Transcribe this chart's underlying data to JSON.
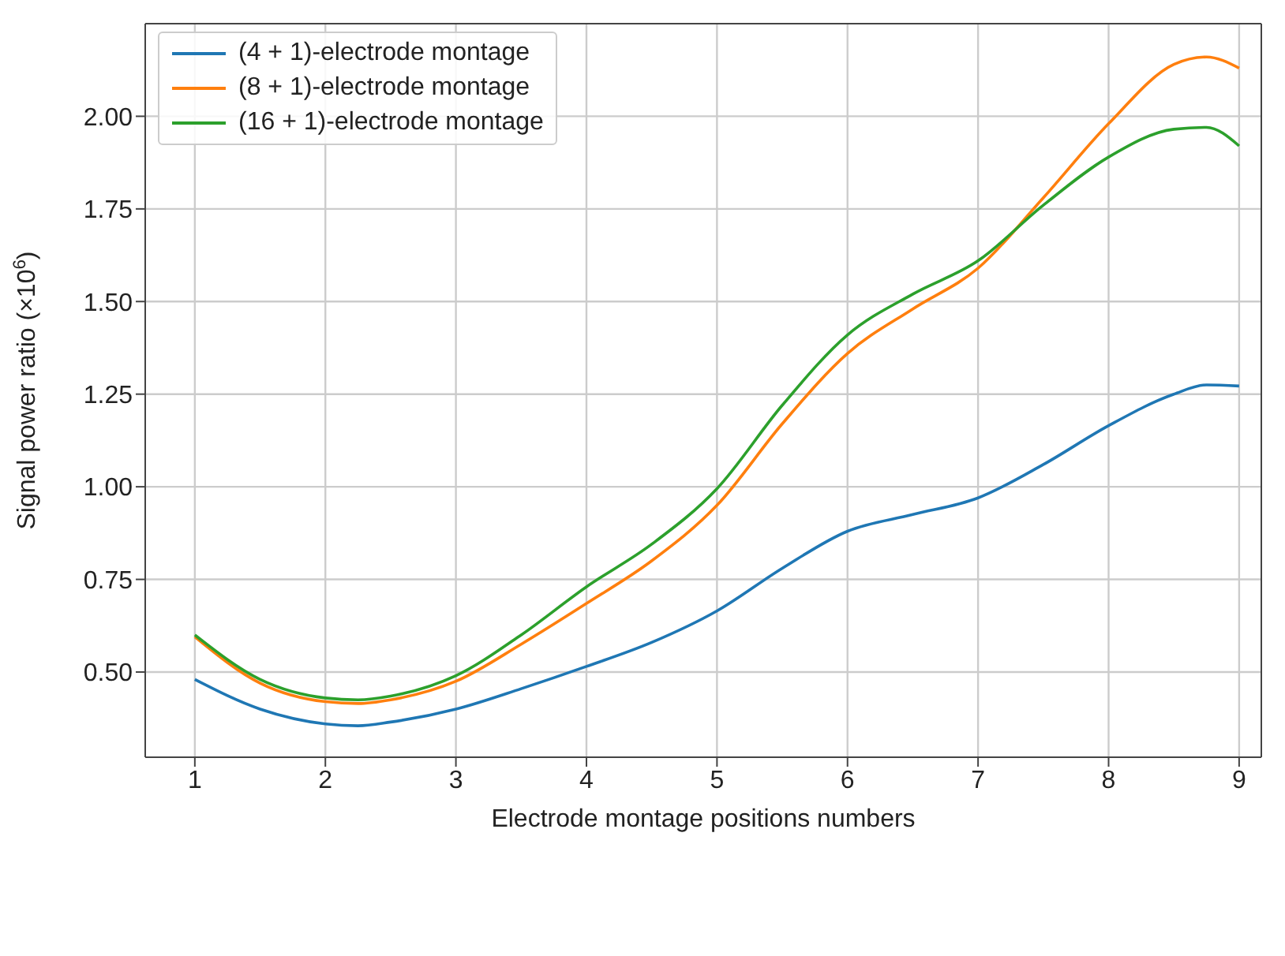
{
  "chart_data": {
    "type": "line",
    "xlabel": "Electrode montage positions numbers",
    "ylabel": "Signal power ratio (×10$^{6}$)",
    "x": [
      1,
      1.5,
      2,
      2.25,
      2.5,
      3,
      3.5,
      4,
      4.5,
      5,
      5.5,
      6,
      6.5,
      7,
      7.5,
      8,
      8.5,
      8.75,
      9
    ],
    "series": [
      {
        "name": "(4 + 1)-electrode montage",
        "color": "#1f77b4",
        "values": [
          0.48,
          0.4,
          0.36,
          0.355,
          0.365,
          0.4,
          0.455,
          0.515,
          0.58,
          0.665,
          0.78,
          0.88,
          0.925,
          0.97,
          1.06,
          1.165,
          1.25,
          1.275,
          1.272
        ]
      },
      {
        "name": "(8 + 1)-electrode montage",
        "color": "#ff7f0e",
        "values": [
          0.595,
          0.47,
          0.42,
          0.415,
          0.425,
          0.475,
          0.575,
          0.685,
          0.8,
          0.95,
          1.17,
          1.36,
          1.48,
          1.59,
          1.78,
          1.98,
          2.14,
          2.16,
          2.13
        ]
      },
      {
        "name": "(16 + 1)-electrode montage",
        "color": "#2ca02c",
        "values": [
          0.6,
          0.48,
          0.43,
          0.425,
          0.435,
          0.49,
          0.6,
          0.73,
          0.845,
          0.995,
          1.22,
          1.41,
          1.52,
          1.61,
          1.76,
          1.89,
          1.965,
          1.97,
          1.92
        ]
      }
    ],
    "xlim": [
      0.62,
      9.17
    ],
    "ylim": [
      0.27,
      2.25
    ],
    "xticks": [
      1,
      2,
      3,
      4,
      5,
      6,
      7,
      8,
      9
    ],
    "yticks": [
      {
        "value": 0.5,
        "label": "0.50"
      },
      {
        "value": 0.75,
        "label": "0.75"
      },
      {
        "value": 1.0,
        "label": "1.00"
      },
      {
        "value": 1.25,
        "label": "1.25"
      },
      {
        "value": 1.5,
        "label": "1.50"
      },
      {
        "value": 1.75,
        "label": "1.75"
      },
      {
        "value": 2.0,
        "label": "2.00"
      }
    ],
    "grid": true,
    "legend": "top left",
    "marker": "none",
    "line_style": "solid"
  }
}
